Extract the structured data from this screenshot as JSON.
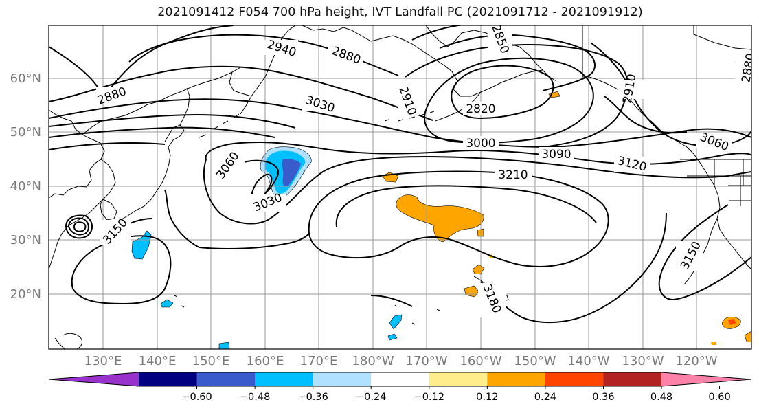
{
  "title": "2021091412 F054 700 hPa height, IVT Landfall PC (2021091712 - 2021091912)",
  "lat_labels": [
    "60°N",
    "50°N",
    "40°N",
    "30°N",
    "20°N"
  ],
  "lon_labels": [
    "130°E",
    "140°E",
    "150°E",
    "160°E",
    "170°E",
    "180°W",
    "170°W",
    "160°W",
    "150°W",
    "140°W",
    "130°W",
    "120°W"
  ],
  "contour_labels": [
    "2880",
    "2940",
    "2880",
    "2850",
    "2910",
    "3030",
    "2820",
    "3000",
    "3090",
    "3120",
    "3060",
    "3060",
    "3030",
    "3210",
    "3150",
    "3150",
    "3180",
    "2880",
    "2910"
  ],
  "colorbar": {
    "ticks": [
      "−0.60",
      "−0.48",
      "−0.36",
      "−0.24",
      "−0.12",
      "0.12",
      "0.24",
      "0.36",
      "0.48",
      "0.60"
    ],
    "colors": [
      "#9932cc",
      "#000080",
      "#3a5bcc",
      "#00bfff",
      "#b0e2ff",
      "#ffffff",
      "#ffec8b",
      "#ffa500",
      "#ff4500",
      "#b22222",
      "#ff82ab"
    ]
  }
}
